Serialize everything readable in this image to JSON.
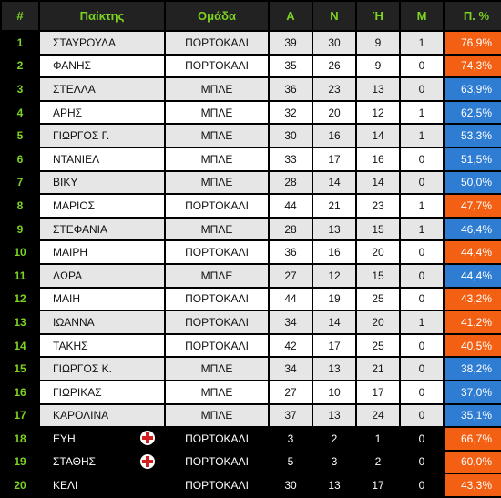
{
  "colors": {
    "orange": "#f36013",
    "blue": "#2f7dd3",
    "header_text": "#7dd321",
    "injury_cross": "#d21e1e"
  },
  "headers": {
    "rank": "#",
    "player": "Παίκτης",
    "team": "Ομάδα",
    "a": "A",
    "n": "N",
    "h": "Ή",
    "m": "M",
    "pct": "Π. %"
  },
  "rows": [
    {
      "rank": "1",
      "name": "ΣΤΑΥΡΟΥΛΑ",
      "team": "ΠΟΡΤΟΚΑΛΙ",
      "a": "39",
      "n": "30",
      "h": "9",
      "m": "1",
      "pct": "76,9%",
      "team_color": "orange",
      "injured": false
    },
    {
      "rank": "2",
      "name": "ΦΑΝΗΣ",
      "team": "ΠΟΡΤΟΚΑΛΙ",
      "a": "35",
      "n": "26",
      "h": "9",
      "m": "0",
      "pct": "74,3%",
      "team_color": "orange",
      "injured": false
    },
    {
      "rank": "3",
      "name": "ΣΤΕΛΛΑ",
      "team": "ΜΠΛΕ",
      "a": "36",
      "n": "23",
      "h": "13",
      "m": "0",
      "pct": "63,9%",
      "team_color": "blue",
      "injured": false
    },
    {
      "rank": "4",
      "name": "ΑΡΗΣ",
      "team": "ΜΠΛΕ",
      "a": "32",
      "n": "20",
      "h": "12",
      "m": "1",
      "pct": "62,5%",
      "team_color": "blue",
      "injured": false
    },
    {
      "rank": "5",
      "name": "ΓΙΩΡΓΟΣ Γ.",
      "team": "ΜΠΛΕ",
      "a": "30",
      "n": "16",
      "h": "14",
      "m": "1",
      "pct": "53,3%",
      "team_color": "blue",
      "injured": false
    },
    {
      "rank": "6",
      "name": "ΝΤΑΝΙΕΛ",
      "team": "ΜΠΛΕ",
      "a": "33",
      "n": "17",
      "h": "16",
      "m": "0",
      "pct": "51,5%",
      "team_color": "blue",
      "injured": false
    },
    {
      "rank": "7",
      "name": "ΒΙΚΥ",
      "team": "ΜΠΛΕ",
      "a": "28",
      "n": "14",
      "h": "14",
      "m": "0",
      "pct": "50,0%",
      "team_color": "blue",
      "injured": false
    },
    {
      "rank": "8",
      "name": "ΜΑΡΙΟΣ",
      "team": "ΠΟΡΤΟΚΑΛΙ",
      "a": "44",
      "n": "21",
      "h": "23",
      "m": "1",
      "pct": "47,7%",
      "team_color": "orange",
      "injured": false
    },
    {
      "rank": "9",
      "name": "ΣΤΕΦΑΝΙΑ",
      "team": "ΜΠΛΕ",
      "a": "28",
      "n": "13",
      "h": "15",
      "m": "1",
      "pct": "46,4%",
      "team_color": "blue",
      "injured": false
    },
    {
      "rank": "10",
      "name": "ΜΑΙΡΗ",
      "team": "ΠΟΡΤΟΚΑΛΙ",
      "a": "36",
      "n": "16",
      "h": "20",
      "m": "0",
      "pct": "44,4%",
      "team_color": "orange",
      "injured": false
    },
    {
      "rank": "11",
      "name": "ΔΩΡΑ",
      "team": "ΜΠΛΕ",
      "a": "27",
      "n": "12",
      "h": "15",
      "m": "0",
      "pct": "44,4%",
      "team_color": "blue",
      "injured": false
    },
    {
      "rank": "12",
      "name": "ΜΑΙΗ",
      "team": "ΠΟΡΤΟΚΑΛΙ",
      "a": "44",
      "n": "19",
      "h": "25",
      "m": "0",
      "pct": "43,2%",
      "team_color": "orange",
      "injured": false
    },
    {
      "rank": "13",
      "name": "ΙΩΑΝΝΑ",
      "team": "ΠΟΡΤΟΚΑΛΙ",
      "a": "34",
      "n": "14",
      "h": "20",
      "m": "1",
      "pct": "41,2%",
      "team_color": "orange",
      "injured": false
    },
    {
      "rank": "14",
      "name": "ΤΑΚΗΣ",
      "team": "ΠΟΡΤΟΚΑΛΙ",
      "a": "42",
      "n": "17",
      "h": "25",
      "m": "0",
      "pct": "40,5%",
      "team_color": "orange",
      "injured": false
    },
    {
      "rank": "15",
      "name": "ΓΙΩΡΓΟΣ Κ.",
      "team": "ΜΠΛΕ",
      "a": "34",
      "n": "13",
      "h": "21",
      "m": "0",
      "pct": "38,2%",
      "team_color": "blue",
      "injured": false
    },
    {
      "rank": "16",
      "name": "ΓΙΩΡΙΚΑΣ",
      "team": "ΜΠΛΕ",
      "a": "27",
      "n": "10",
      "h": "17",
      "m": "0",
      "pct": "37,0%",
      "team_color": "blue",
      "injured": false
    },
    {
      "rank": "17",
      "name": "ΚΑΡΟΛΙΝΑ",
      "team": "ΜΠΛΕ",
      "a": "37",
      "n": "13",
      "h": "24",
      "m": "0",
      "pct": "35,1%",
      "team_color": "blue",
      "injured": false
    },
    {
      "rank": "18",
      "name": "ΕΥΗ",
      "team": "ΠΟΡΤΟΚΑΛΙ",
      "a": "3",
      "n": "2",
      "h": "1",
      "m": "0",
      "pct": "66,7%",
      "team_color": "orange",
      "injured": true
    },
    {
      "rank": "19",
      "name": "ΣΤΑΘΗΣ",
      "team": "ΠΟΡΤΟΚΑΛΙ",
      "a": "5",
      "n": "3",
      "h": "2",
      "m": "0",
      "pct": "60,0%",
      "team_color": "orange",
      "injured": true
    },
    {
      "rank": "20",
      "name": "ΚΕΛΙ",
      "team": "ΠΟΡΤΟΚΑΛΙ",
      "a": "30",
      "n": "13",
      "h": "17",
      "m": "0",
      "pct": "43,3%",
      "team_color": "orange",
      "injured": false
    }
  ]
}
